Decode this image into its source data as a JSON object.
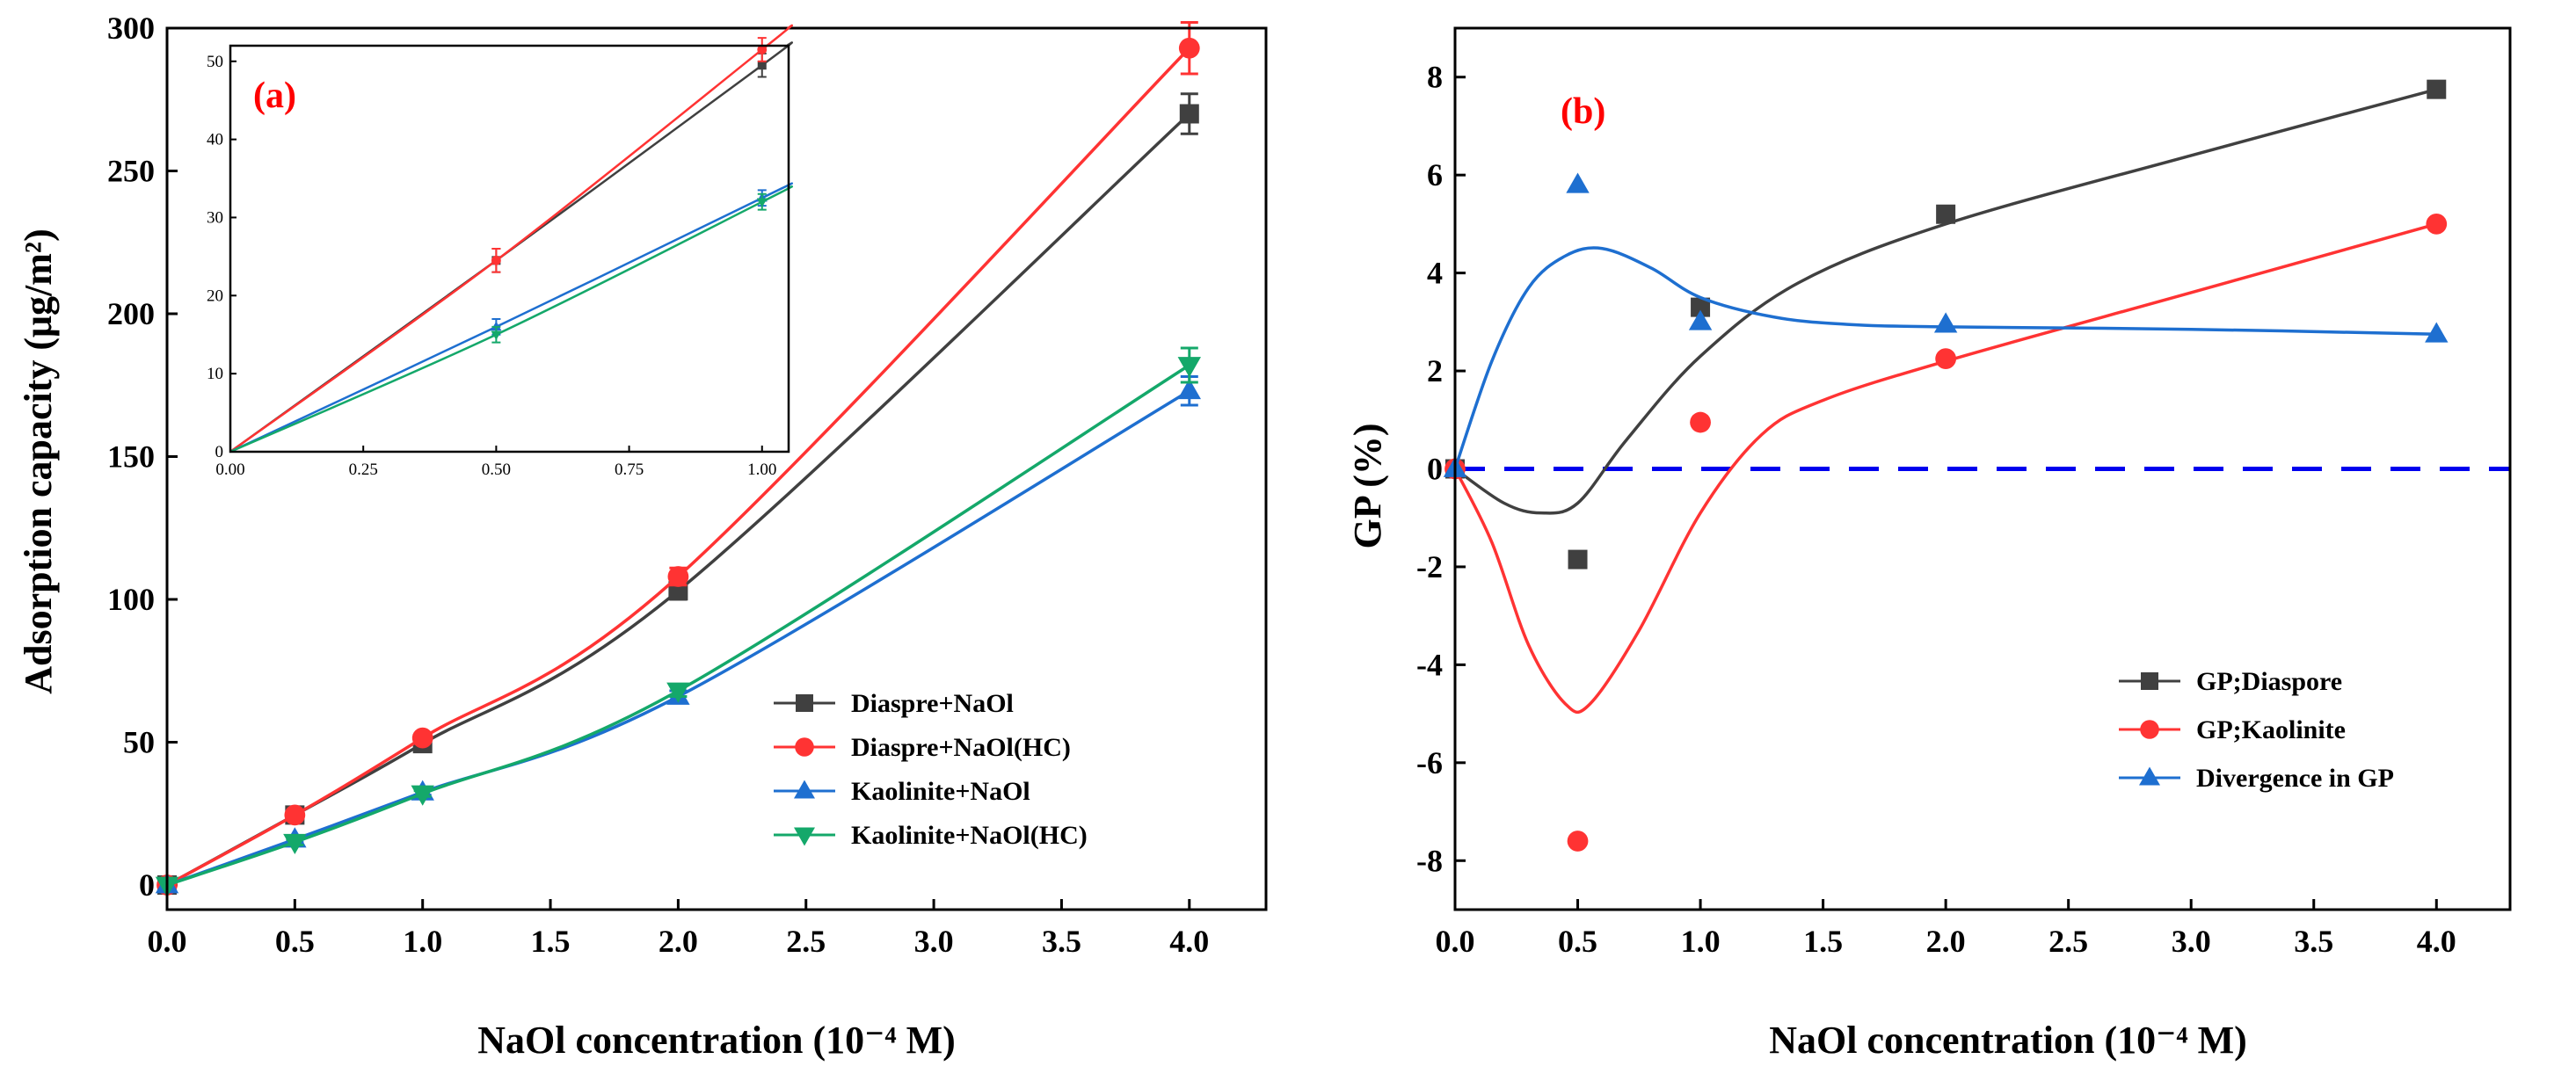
{
  "chart_data": [
    {
      "type": "line",
      "panel_label": "(a)",
      "xlabel": "NaOl concentration (10⁻⁴ M)",
      "ylabel": "Adsorption capacity (μg/m²)",
      "xlim": [
        0,
        4.3
      ],
      "ylim": [
        0,
        300
      ],
      "xticks": [
        "0.0",
        "0.5",
        "1.0",
        "1.5",
        "2.0",
        "2.5",
        "3.0",
        "3.5",
        "4.0"
      ],
      "yticks": [
        "0",
        "50",
        "100",
        "150",
        "200",
        "250",
        "300"
      ],
      "legend_position": "lower-right",
      "series": [
        {
          "name": "Diaspre+NaOl",
          "color": "#404040",
          "marker": "square",
          "x": [
            0,
            0.5,
            1.0,
            2.0,
            4.0
          ],
          "y": [
            0,
            24.5,
            49.5,
            103,
            270
          ],
          "error": [
            0,
            1.5,
            1.5,
            3,
            7
          ]
        },
        {
          "name": "Diaspre+NaOl(HC)",
          "color": "#ff3333",
          "marker": "circle",
          "x": [
            0,
            0.5,
            1.0,
            2.0,
            4.0
          ],
          "y": [
            0,
            24.5,
            51.5,
            108,
            293
          ],
          "error": [
            0,
            1.5,
            1.5,
            3,
            9
          ]
        },
        {
          "name": "Kaolinite+NaOl",
          "color": "#1e6fd0",
          "marker": "triangle-up",
          "x": [
            0,
            0.5,
            1.0,
            2.0,
            4.0
          ],
          "y": [
            0,
            16,
            32.5,
            66,
            173
          ],
          "error": [
            0,
            1,
            1,
            2,
            5
          ]
        },
        {
          "name": "Kaolinite+NaOl(HC)",
          "color": "#14a86a",
          "marker": "triangle-down",
          "x": [
            0,
            0.5,
            1.0,
            2.0,
            4.0
          ],
          "y": [
            0,
            15,
            32,
            68,
            182
          ],
          "error": [
            0,
            1,
            1,
            2,
            6
          ]
        }
      ],
      "inset": {
        "xlim": [
          0,
          1.05
        ],
        "ylim": [
          0,
          52
        ],
        "xticks": [
          "0.00",
          "0.25",
          "0.50",
          "0.75",
          "1.00"
        ],
        "yticks": [
          "0",
          "10",
          "20",
          "30",
          "40",
          "50"
        ]
      }
    },
    {
      "type": "line",
      "panel_label": "(b)",
      "xlabel": "NaOl concentration (10⁻⁴ M)",
      "ylabel": "GP (%)",
      "xlim": [
        0,
        4.3
      ],
      "ylim": [
        -9,
        9
      ],
      "xticks": [
        "0.0",
        "0.5",
        "1.0",
        "1.5",
        "2.0",
        "2.5",
        "3.0",
        "3.5",
        "4.0"
      ],
      "yticks": [
        "-8",
        "-6",
        "-4",
        "-2",
        "0",
        "2",
        "4",
        "6",
        "8"
      ],
      "legend_position": "lower-right",
      "reference_line_y": 0,
      "series": [
        {
          "name": "GP;Diaspore",
          "color": "#404040",
          "marker": "square",
          "x": [
            0,
            0.5,
            1.0,
            2.0,
            4.0
          ],
          "y": [
            0,
            -1.85,
            3.3,
            5.2,
            7.75
          ],
          "fit": {
            "x": [
              0,
              0.2,
              0.35,
              0.5,
              0.7,
              1.0,
              1.4,
              2.0,
              3.0,
              4.0
            ],
            "y": [
              0,
              -0.7,
              -0.9,
              -0.7,
              0.6,
              2.3,
              3.8,
              5.0,
              6.4,
              7.75
            ]
          }
        },
        {
          "name": "GP;Kaolinite",
          "color": "#ff3333",
          "marker": "circle",
          "x": [
            0,
            0.5,
            1.0,
            2.0,
            4.0
          ],
          "y": [
            0,
            -7.6,
            0.95,
            2.25,
            5.0
          ],
          "fit": {
            "x": [
              0,
              0.15,
              0.3,
              0.45,
              0.55,
              0.75,
              1.0,
              1.25,
              1.5,
              2.0,
              3.0,
              4.0
            ],
            "y": [
              0,
              -1.5,
              -3.6,
              -4.8,
              -4.8,
              -3.3,
              -0.9,
              0.7,
              1.4,
              2.2,
              3.6,
              5.0
            ]
          }
        },
        {
          "name": "Divergence in GP",
          "color": "#1e6fd0",
          "marker": "triangle-up",
          "x": [
            0,
            0.5,
            1.0,
            2.0,
            4.0
          ],
          "y": [
            0,
            5.8,
            3.0,
            2.95,
            2.75
          ],
          "fit": {
            "x": [
              0,
              0.15,
              0.3,
              0.45,
              0.6,
              0.8,
              1.0,
              1.3,
              1.6,
              2.0,
              3.0,
              4.0
            ],
            "y": [
              0,
              2.2,
              3.7,
              4.35,
              4.5,
              4.1,
              3.5,
              3.1,
              2.95,
              2.9,
              2.85,
              2.75
            ]
          }
        }
      ]
    }
  ]
}
